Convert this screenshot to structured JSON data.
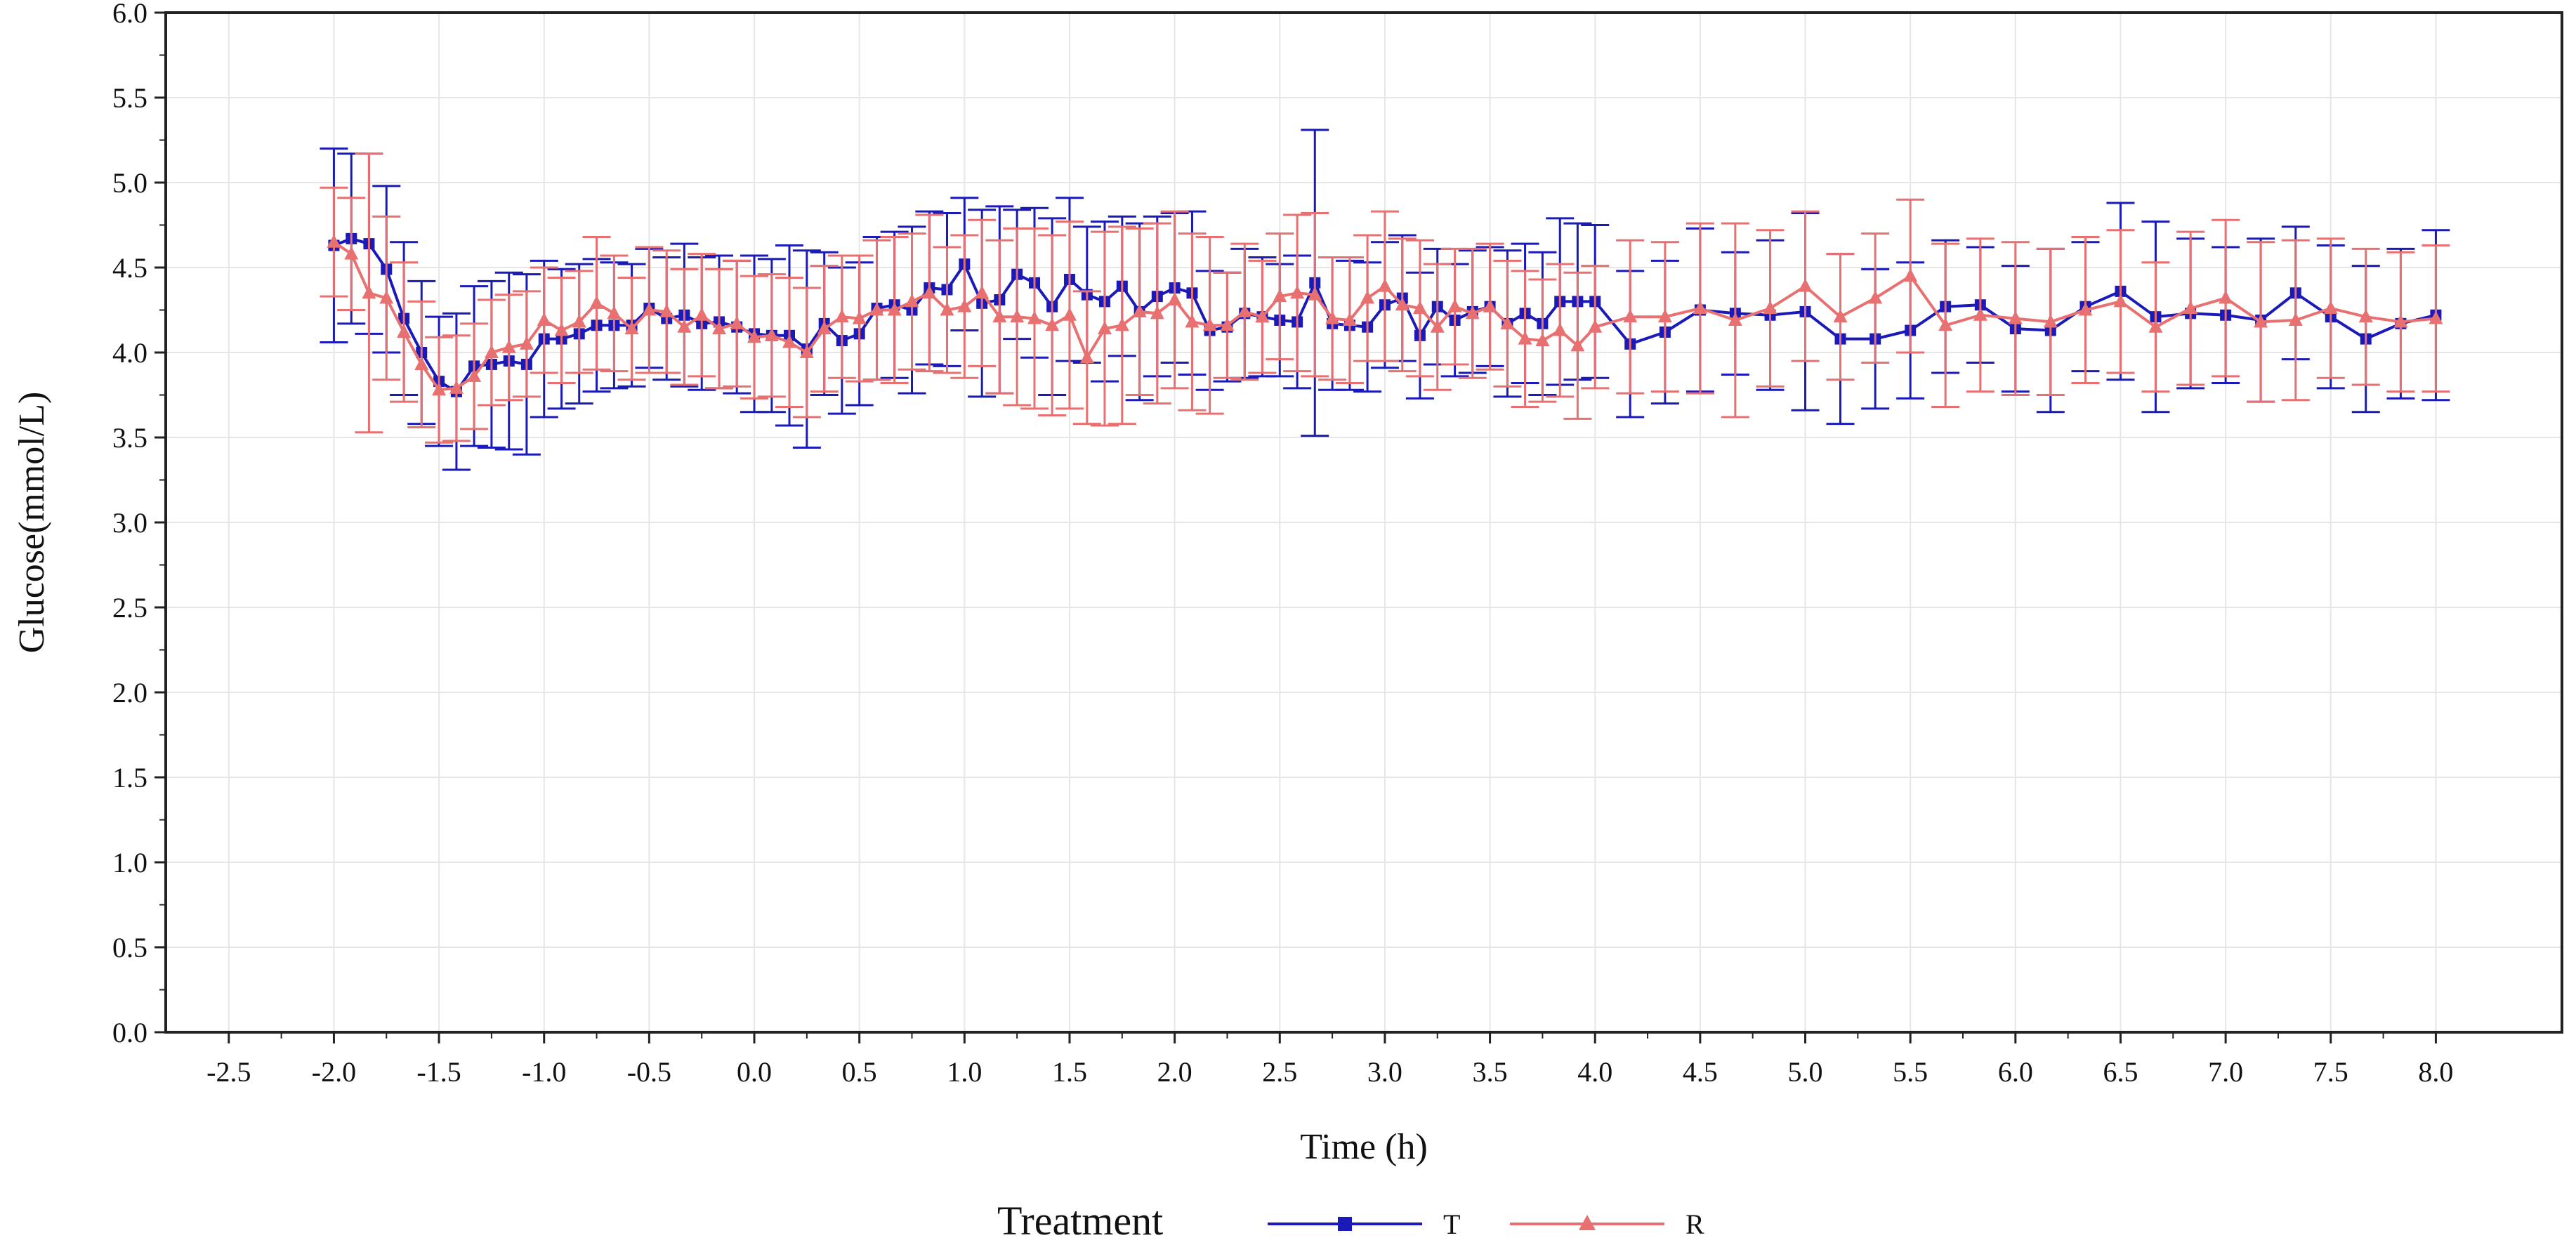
{
  "chart_data": {
    "type": "line",
    "title": "",
    "xlabel": "Time (h)",
    "ylabel": "Glucose(mmol/L)",
    "xlim": [
      -2.8,
      8.6
    ],
    "ylim": [
      0,
      6.0
    ],
    "xticks": [
      -2.5,
      -2.0,
      -1.5,
      -1.0,
      -0.5,
      0.0,
      0.5,
      1.0,
      1.5,
      2.0,
      2.5,
      3.0,
      3.5,
      4.0,
      4.5,
      5.0,
      5.5,
      6.0,
      6.5,
      7.0,
      7.5,
      8.0
    ],
    "xtick_labels": [
      "-2.5",
      "-2.0",
      "-1.5",
      "-1.0",
      "-0.5",
      "0.0",
      "0.5",
      "1.0",
      "1.5",
      "2.0",
      "2.5",
      "3.0",
      "3.5",
      "4.0",
      "4.5",
      "5.0",
      "5.5",
      "6.0",
      "6.5",
      "7.0",
      "7.5",
      "8.0"
    ],
    "yticks": [
      0.0,
      0.5,
      1.0,
      1.5,
      2.0,
      2.5,
      3.0,
      3.5,
      4.0,
      4.5,
      5.0,
      5.5,
      6.0
    ],
    "ytick_labels": [
      "0.0",
      "0.5",
      "1.0",
      "1.5",
      "2.0",
      "2.5",
      "3.0",
      "3.5",
      "4.0",
      "4.5",
      "5.0",
      "5.5",
      "6.0"
    ],
    "grid": true,
    "legend": {
      "title": "Treatment",
      "position": "bottom-center"
    },
    "series": [
      {
        "name": "T",
        "color": "#1a1ab8",
        "marker": "square",
        "points": [
          [
            -2.0,
            4.63,
            0.57
          ],
          [
            -1.917,
            4.67,
            0.5
          ],
          [
            -1.833,
            4.64,
            0.53
          ],
          [
            -1.75,
            4.49,
            0.49
          ],
          [
            -1.667,
            4.2,
            0.45
          ],
          [
            -1.583,
            4.0,
            0.42
          ],
          [
            -1.5,
            3.83,
            0.38
          ],
          [
            -1.417,
            3.77,
            0.46
          ],
          [
            -1.333,
            3.92,
            0.47
          ],
          [
            -1.25,
            3.93,
            0.49
          ],
          [
            -1.167,
            3.95,
            0.52
          ],
          [
            -1.083,
            3.93,
            0.53
          ],
          [
            -1.0,
            4.08,
            0.46
          ],
          [
            -0.917,
            4.08,
            0.41
          ],
          [
            -0.833,
            4.11,
            0.41
          ],
          [
            -0.75,
            4.16,
            0.39
          ],
          [
            -0.667,
            4.16,
            0.37
          ],
          [
            -0.583,
            4.16,
            0.36
          ],
          [
            -0.5,
            4.26,
            0.35
          ],
          [
            -0.417,
            4.2,
            0.36
          ],
          [
            -0.333,
            4.22,
            0.42
          ],
          [
            -0.25,
            4.17,
            0.39
          ],
          [
            -0.167,
            4.18,
            0.39
          ],
          [
            -0.083,
            4.15,
            0.39
          ],
          [
            0.0,
            4.11,
            0.46
          ],
          [
            0.083,
            4.1,
            0.45
          ],
          [
            0.167,
            4.1,
            0.53
          ],
          [
            0.25,
            4.02,
            0.58
          ],
          [
            0.333,
            4.17,
            0.42
          ],
          [
            0.417,
            4.07,
            0.43
          ],
          [
            0.5,
            4.11,
            0.42
          ],
          [
            0.583,
            4.26,
            0.42
          ],
          [
            0.667,
            4.28,
            0.43
          ],
          [
            0.75,
            4.25,
            0.49
          ],
          [
            0.833,
            4.38,
            0.45
          ],
          [
            0.917,
            4.37,
            0.45
          ],
          [
            1.0,
            4.52,
            0.39
          ],
          [
            1.083,
            4.29,
            0.55
          ],
          [
            1.167,
            4.31,
            0.55
          ],
          [
            1.25,
            4.46,
            0.38
          ],
          [
            1.333,
            4.41,
            0.44
          ],
          [
            1.417,
            4.27,
            0.52
          ],
          [
            1.5,
            4.43,
            0.48
          ],
          [
            1.583,
            4.34,
            0.4
          ],
          [
            1.667,
            4.3,
            0.47
          ],
          [
            1.75,
            4.39,
            0.41
          ],
          [
            1.833,
            4.24,
            0.52
          ],
          [
            1.917,
            4.33,
            0.47
          ],
          [
            2.0,
            4.38,
            0.44
          ],
          [
            2.083,
            4.35,
            0.48
          ],
          [
            2.167,
            4.13,
            0.35
          ],
          [
            2.25,
            4.15,
            0.32
          ],
          [
            2.333,
            4.23,
            0.38
          ],
          [
            2.417,
            4.21,
            0.35
          ],
          [
            2.5,
            4.19,
            0.33
          ],
          [
            2.583,
            4.18,
            0.39
          ],
          [
            2.667,
            4.41,
            0.9
          ],
          [
            2.75,
            4.17,
            0.39
          ],
          [
            2.833,
            4.16,
            0.38
          ],
          [
            2.917,
            4.15,
            0.38
          ],
          [
            3.0,
            4.28,
            0.37
          ],
          [
            3.083,
            4.32,
            0.37
          ],
          [
            3.167,
            4.1,
            0.37
          ],
          [
            3.25,
            4.27,
            0.34
          ],
          [
            3.333,
            4.19,
            0.33
          ],
          [
            3.417,
            4.24,
            0.36
          ],
          [
            3.5,
            4.27,
            0.35
          ],
          [
            3.583,
            4.17,
            0.43
          ],
          [
            3.667,
            4.23,
            0.41
          ],
          [
            3.75,
            4.17,
            0.42
          ],
          [
            3.833,
            4.3,
            0.49
          ],
          [
            3.917,
            4.3,
            0.46
          ],
          [
            4.0,
            4.3,
            0.45
          ],
          [
            4.167,
            4.05,
            0.43
          ],
          [
            4.333,
            4.12,
            0.42
          ],
          [
            4.5,
            4.25,
            0.48
          ],
          [
            4.667,
            4.23,
            0.36
          ],
          [
            4.833,
            4.22,
            0.44
          ],
          [
            5.0,
            4.24,
            0.58
          ],
          [
            5.167,
            4.08,
            0.5
          ],
          [
            5.333,
            4.08,
            0.41
          ],
          [
            5.5,
            4.13,
            0.4
          ],
          [
            5.667,
            4.27,
            0.39
          ],
          [
            5.833,
            4.28,
            0.34
          ],
          [
            6.0,
            4.14,
            0.37
          ],
          [
            6.167,
            4.13,
            0.48
          ],
          [
            6.333,
            4.27,
            0.38
          ],
          [
            6.5,
            4.36,
            0.52
          ],
          [
            6.667,
            4.21,
            0.56
          ],
          [
            6.833,
            4.23,
            0.44
          ],
          [
            7.0,
            4.22,
            0.4
          ],
          [
            7.167,
            4.19,
            0.48
          ],
          [
            7.333,
            4.35,
            0.39
          ],
          [
            7.5,
            4.21,
            0.42
          ],
          [
            7.667,
            4.08,
            0.43
          ],
          [
            7.833,
            4.17,
            0.44
          ],
          [
            8.0,
            4.22,
            0.5
          ]
        ]
      },
      {
        "name": "R",
        "color": "#e87070",
        "marker": "triangle",
        "points": [
          [
            -2.0,
            4.65,
            0.32
          ],
          [
            -1.917,
            4.58,
            0.33
          ],
          [
            -1.833,
            4.35,
            0.82
          ],
          [
            -1.75,
            4.32,
            0.48
          ],
          [
            -1.667,
            4.12,
            0.41
          ],
          [
            -1.583,
            3.93,
            0.37
          ],
          [
            -1.5,
            3.78,
            0.31
          ],
          [
            -1.417,
            3.79,
            0.31
          ],
          [
            -1.333,
            3.86,
            0.31
          ],
          [
            -1.25,
            4.0,
            0.31
          ],
          [
            -1.167,
            4.03,
            0.31
          ],
          [
            -1.083,
            4.05,
            0.31
          ],
          [
            -1.0,
            4.19,
            0.31
          ],
          [
            -0.917,
            4.13,
            0.31
          ],
          [
            -0.833,
            4.18,
            0.3
          ],
          [
            -0.75,
            4.29,
            0.39
          ],
          [
            -0.667,
            4.23,
            0.34
          ],
          [
            -0.583,
            4.14,
            0.3
          ],
          [
            -0.5,
            4.25,
            0.37
          ],
          [
            -0.417,
            4.24,
            0.36
          ],
          [
            -0.333,
            4.15,
            0.34
          ],
          [
            -0.25,
            4.22,
            0.36
          ],
          [
            -0.167,
            4.14,
            0.35
          ],
          [
            -0.083,
            4.17,
            0.37
          ],
          [
            0.0,
            4.09,
            0.36
          ],
          [
            0.083,
            4.1,
            0.36
          ],
          [
            0.167,
            4.06,
            0.38
          ],
          [
            0.25,
            4.0,
            0.38
          ],
          [
            0.333,
            4.14,
            0.37
          ],
          [
            0.417,
            4.21,
            0.36
          ],
          [
            0.5,
            4.2,
            0.37
          ],
          [
            0.583,
            4.25,
            0.41
          ],
          [
            0.667,
            4.25,
            0.43
          ],
          [
            0.75,
            4.3,
            0.4
          ],
          [
            0.833,
            4.35,
            0.46
          ],
          [
            0.917,
            4.25,
            0.37
          ],
          [
            1.0,
            4.27,
            0.42
          ],
          [
            1.083,
            4.35,
            0.43
          ],
          [
            1.167,
            4.21,
            0.45
          ],
          [
            1.25,
            4.21,
            0.52
          ],
          [
            1.333,
            4.2,
            0.53
          ],
          [
            1.417,
            4.16,
            0.53
          ],
          [
            1.5,
            4.22,
            0.55
          ],
          [
            1.583,
            3.97,
            0.39
          ],
          [
            1.667,
            4.14,
            0.57
          ],
          [
            1.75,
            4.16,
            0.58
          ],
          [
            1.833,
            4.24,
            0.49
          ],
          [
            1.917,
            4.23,
            0.53
          ],
          [
            2.0,
            4.31,
            0.52
          ],
          [
            2.083,
            4.18,
            0.52
          ],
          [
            2.167,
            4.16,
            0.52
          ],
          [
            2.25,
            4.16,
            0.31
          ],
          [
            2.333,
            4.24,
            0.4
          ],
          [
            2.417,
            4.21,
            0.33
          ],
          [
            2.5,
            4.33,
            0.37
          ],
          [
            2.583,
            4.35,
            0.46
          ],
          [
            2.667,
            4.34,
            0.48
          ],
          [
            2.75,
            4.2,
            0.36
          ],
          [
            2.833,
            4.19,
            0.37
          ],
          [
            2.917,
            4.32,
            0.37
          ],
          [
            3.0,
            4.39,
            0.44
          ],
          [
            3.083,
            4.28,
            0.39
          ],
          [
            3.167,
            4.26,
            0.4
          ],
          [
            3.25,
            4.15,
            0.37
          ],
          [
            3.333,
            4.27,
            0.34
          ],
          [
            3.417,
            4.23,
            0.38
          ],
          [
            3.5,
            4.27,
            0.37
          ],
          [
            3.583,
            4.17,
            0.37
          ],
          [
            3.667,
            4.08,
            0.4
          ],
          [
            3.75,
            4.07,
            0.36
          ],
          [
            3.833,
            4.13,
            0.39
          ],
          [
            3.917,
            4.04,
            0.43
          ],
          [
            4.0,
            4.15,
            0.36
          ],
          [
            4.167,
            4.21,
            0.45
          ],
          [
            4.333,
            4.21,
            0.44
          ],
          [
            4.5,
            4.26,
            0.5
          ],
          [
            4.667,
            4.19,
            0.57
          ],
          [
            4.833,
            4.26,
            0.46
          ],
          [
            5.0,
            4.39,
            0.44
          ],
          [
            5.167,
            4.21,
            0.37
          ],
          [
            5.333,
            4.32,
            0.38
          ],
          [
            5.5,
            4.45,
            0.45
          ],
          [
            5.667,
            4.16,
            0.48
          ],
          [
            5.833,
            4.22,
            0.45
          ],
          [
            6.0,
            4.2,
            0.45
          ],
          [
            6.167,
            4.18,
            0.43
          ],
          [
            6.333,
            4.25,
            0.43
          ],
          [
            6.5,
            4.3,
            0.42
          ],
          [
            6.667,
            4.15,
            0.38
          ],
          [
            6.833,
            4.26,
            0.45
          ],
          [
            7.0,
            4.32,
            0.46
          ],
          [
            7.167,
            4.18,
            0.47
          ],
          [
            7.333,
            4.19,
            0.47
          ],
          [
            7.5,
            4.26,
            0.41
          ],
          [
            7.667,
            4.21,
            0.4
          ],
          [
            7.833,
            4.18,
            0.41
          ],
          [
            8.0,
            4.2,
            0.43
          ]
        ]
      }
    ]
  }
}
